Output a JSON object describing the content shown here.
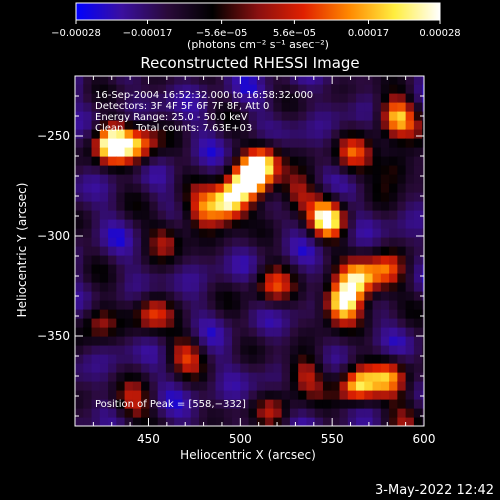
{
  "chart_data": {
    "type": "heatmap",
    "title": "Reconstructed RHESSI Image",
    "xlabel": "Heliocentric X (arcsec)",
    "ylabel": "Heliocentric Y (arcsec)",
    "xlim": [
      410,
      600
    ],
    "ylim": [
      -395,
      -220
    ],
    "x_ticks": [
      450,
      500,
      550,
      600
    ],
    "y_ticks": [
      -250,
      -300,
      -350
    ],
    "x_tick_labels": [
      "450",
      "500",
      "550",
      "600"
    ],
    "y_tick_labels": [
      "−250",
      "−300",
      "−350"
    ],
    "info_lines": [
      "16-Sep-2004 16:52:32.000 to 16:58:32.000",
      "Detectors: 3F 4F 5F 6F 7F 8F, Att 0",
      "Energy Range: 25.0 - 50.0 keV",
      "Clean    Total counts: 7.63E+03"
    ],
    "peak_label": "Position of Peak = [558,−332]",
    "peak_position": [
      558,
      -332
    ],
    "colorbar": {
      "min": -0.00028,
      "max": 0.00028,
      "ticks": [
        -0.00028,
        -0.00017,
        -5.6e-05,
        5.6e-05,
        0.00017,
        0.00028
      ],
      "tick_labels": [
        "−0.00028",
        "−0.00017",
        "−5.6e−05",
        "5.6e−05",
        "0.00017",
        "0.00028"
      ],
      "unit_label": "(photons cm⁻² s⁻¹ asec⁻²)",
      "colors": [
        "#0000ff",
        "#3a0fa0",
        "#2a0a3a",
        "#000000",
        "#8a1010",
        "#e02000",
        "#ff8800",
        "#ffee40",
        "#ffffff"
      ]
    },
    "bright_sources": [
      {
        "x": 430,
        "y": -253,
        "v": 1.0
      },
      {
        "x": 445,
        "y": -255,
        "v": 0.7
      },
      {
        "x": 494,
        "y": -283,
        "v": 1.0
      },
      {
        "x": 505,
        "y": -272,
        "v": 0.9
      },
      {
        "x": 513,
        "y": -262,
        "v": 0.7
      },
      {
        "x": 479,
        "y": -288,
        "v": 0.6
      },
      {
        "x": 548,
        "y": -292,
        "v": 0.85
      },
      {
        "x": 530,
        "y": -278,
        "v": 0.55
      },
      {
        "x": 555,
        "y": -333,
        "v": 1.05
      },
      {
        "x": 565,
        "y": -322,
        "v": 0.75
      },
      {
        "x": 580,
        "y": -318,
        "v": 0.6
      },
      {
        "x": 584,
        "y": -240,
        "v": 0.85
      },
      {
        "x": 585,
        "y": -265,
        "v": 0.6
      },
      {
        "x": 560,
        "y": -260,
        "v": 0.5
      },
      {
        "x": 563,
        "y": -375,
        "v": 0.9
      },
      {
        "x": 535,
        "y": -368,
        "v": 0.55
      },
      {
        "x": 583,
        "y": -370,
        "v": 0.6
      },
      {
        "x": 452,
        "y": -338,
        "v": 0.55
      },
      {
        "x": 422,
        "y": -342,
        "v": 0.5
      },
      {
        "x": 470,
        "y": -358,
        "v": 0.45
      },
      {
        "x": 516,
        "y": -325,
        "v": 0.55
      },
      {
        "x": 460,
        "y": -300,
        "v": 0.45
      },
      {
        "x": 440,
        "y": -385,
        "v": 0.5
      },
      {
        "x": 518,
        "y": -388,
        "v": 0.4
      },
      {
        "x": 590,
        "y": -390,
        "v": 0.4
      }
    ],
    "date_stamp": "3-May-2022 12:42"
  },
  "colors": {
    "background": "#000000",
    "text": "#ffffff"
  }
}
